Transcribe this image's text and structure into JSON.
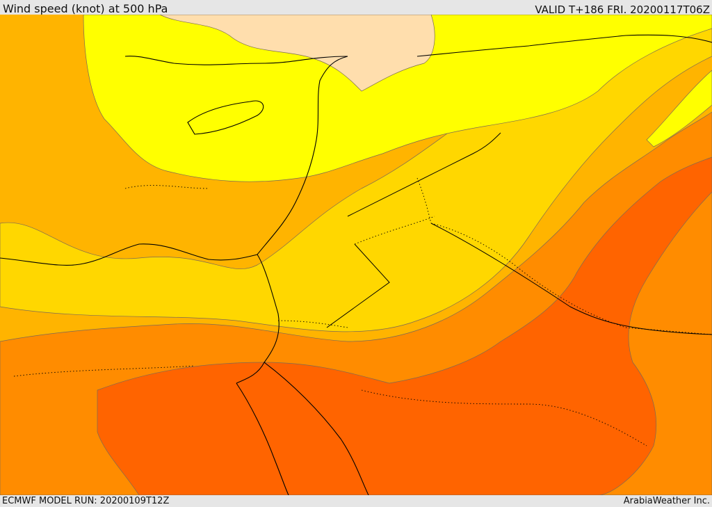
{
  "header": {
    "title": "Wind speed (knot) at 500 hPa",
    "valid": "VALID T+186 FRI. 20200117T06Z"
  },
  "footer": {
    "model_run": "ECMWF MODEL RUN: 20200109T12Z",
    "credit": "ArabiaWeather Inc."
  },
  "colors": {
    "level_1": "#ffdead",
    "level_2": "#ffff00",
    "level_3": "#ffd700",
    "level_4": "#ffb400",
    "level_5": "#ff8c00",
    "level_6": "#ff6400",
    "land_outline": "#000000"
  }
}
